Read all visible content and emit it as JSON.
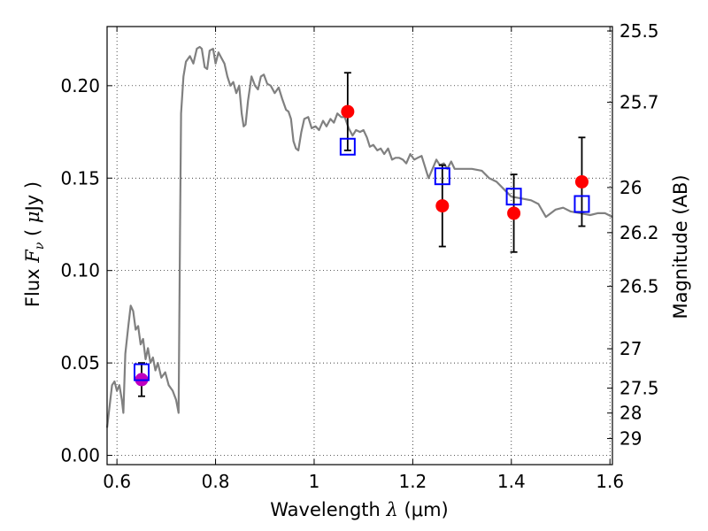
{
  "chart_data": {
    "type": "scatter",
    "xlabel": {
      "prefix": "Wavelength",
      "symbol": "λ",
      "unit": "(μm)"
    },
    "ylabel": {
      "prefix": "Flux",
      "symbol": "F",
      "subscript": "ν",
      "unit_open": "(",
      "unit_symbol": "μ",
      "unit": "Jy )"
    },
    "y2label": "Magnitude (AB)",
    "xlim": [
      0.58,
      1.605
    ],
    "ylim": [
      -0.005,
      0.232
    ],
    "grid": true,
    "x_ticks": [
      0.6,
      0.8,
      1.0,
      1.2,
      1.4,
      1.6
    ],
    "x_tick_labels": [
      "0.6",
      "0.8",
      "1",
      "1.2",
      "1.4",
      "1.6"
    ],
    "y_ticks": [
      0.0,
      0.05,
      0.1,
      0.15,
      0.2
    ],
    "y_tick_labels": [
      "0.00",
      "0.05",
      "0.10",
      "0.15",
      "0.20"
    ],
    "y2_ticks": [
      {
        "label": "25.5",
        "flux": 0.2296
      },
      {
        "label": "25.7",
        "flux": 0.191
      },
      {
        "label": "26",
        "flux": 0.1449
      },
      {
        "label": "26.2",
        "flux": 0.1205
      },
      {
        "label": "26.5",
        "flux": 0.0914
      },
      {
        "label": "27",
        "flux": 0.0577
      },
      {
        "label": "27.5",
        "flux": 0.0364
      },
      {
        "label": "28",
        "flux": 0.0229
      },
      {
        "label": "29",
        "flux": 0.0091
      }
    ],
    "series": [
      {
        "kind": "line",
        "color": "#808080",
        "points": [
          [
            0.58,
            0.015
          ],
          [
            0.59,
            0.038
          ],
          [
            0.595,
            0.04
          ],
          [
            0.6,
            0.035
          ],
          [
            0.605,
            0.038
          ],
          [
            0.61,
            0.03
          ],
          [
            0.613,
            0.023
          ],
          [
            0.617,
            0.055
          ],
          [
            0.623,
            0.07
          ],
          [
            0.628,
            0.081
          ],
          [
            0.633,
            0.078
          ],
          [
            0.638,
            0.068
          ],
          [
            0.643,
            0.07
          ],
          [
            0.648,
            0.06
          ],
          [
            0.653,
            0.063
          ],
          [
            0.658,
            0.052
          ],
          [
            0.663,
            0.058
          ],
          [
            0.668,
            0.05
          ],
          [
            0.673,
            0.053
          ],
          [
            0.678,
            0.046
          ],
          [
            0.683,
            0.05
          ],
          [
            0.69,
            0.042
          ],
          [
            0.698,
            0.045
          ],
          [
            0.705,
            0.038
          ],
          [
            0.713,
            0.035
          ],
          [
            0.72,
            0.03
          ],
          [
            0.725,
            0.023
          ],
          [
            0.728,
            0.12
          ],
          [
            0.73,
            0.185
          ],
          [
            0.735,
            0.205
          ],
          [
            0.74,
            0.213
          ],
          [
            0.748,
            0.216
          ],
          [
            0.755,
            0.212
          ],
          [
            0.762,
            0.22
          ],
          [
            0.768,
            0.221
          ],
          [
            0.772,
            0.22
          ],
          [
            0.778,
            0.21
          ],
          [
            0.783,
            0.209
          ],
          [
            0.788,
            0.219
          ],
          [
            0.795,
            0.22
          ],
          [
            0.8,
            0.212
          ],
          [
            0.806,
            0.218
          ],
          [
            0.812,
            0.215
          ],
          [
            0.818,
            0.212
          ],
          [
            0.824,
            0.205
          ],
          [
            0.83,
            0.2
          ],
          [
            0.836,
            0.202
          ],
          [
            0.842,
            0.196
          ],
          [
            0.848,
            0.2
          ],
          [
            0.853,
            0.185
          ],
          [
            0.857,
            0.178
          ],
          [
            0.861,
            0.179
          ],
          [
            0.866,
            0.192
          ],
          [
            0.873,
            0.205
          ],
          [
            0.88,
            0.2
          ],
          [
            0.886,
            0.198
          ],
          [
            0.892,
            0.205
          ],
          [
            0.898,
            0.206
          ],
          [
            0.905,
            0.201
          ],
          [
            0.912,
            0.2
          ],
          [
            0.92,
            0.196
          ],
          [
            0.928,
            0.199
          ],
          [
            0.935,
            0.193
          ],
          [
            0.943,
            0.187
          ],
          [
            0.948,
            0.186
          ],
          [
            0.953,
            0.182
          ],
          [
            0.958,
            0.17
          ],
          [
            0.963,
            0.166
          ],
          [
            0.968,
            0.165
          ],
          [
            0.974,
            0.175
          ],
          [
            0.98,
            0.182
          ],
          [
            0.988,
            0.183
          ],
          [
            0.995,
            0.177
          ],
          [
            1.003,
            0.178
          ],
          [
            1.01,
            0.176
          ],
          [
            1.018,
            0.181
          ],
          [
            1.025,
            0.178
          ],
          [
            1.033,
            0.182
          ],
          [
            1.04,
            0.18
          ],
          [
            1.047,
            0.185
          ],
          [
            1.055,
            0.183
          ],
          [
            1.062,
            0.183
          ],
          [
            1.07,
            0.177
          ],
          [
            1.078,
            0.173
          ],
          [
            1.085,
            0.176
          ],
          [
            1.093,
            0.175
          ],
          [
            1.1,
            0.176
          ],
          [
            1.107,
            0.172
          ],
          [
            1.113,
            0.167
          ],
          [
            1.12,
            0.168
          ],
          [
            1.128,
            0.165
          ],
          [
            1.135,
            0.166
          ],
          [
            1.142,
            0.163
          ],
          [
            1.15,
            0.166
          ],
          [
            1.158,
            0.16
          ],
          [
            1.165,
            0.161
          ],
          [
            1.172,
            0.161
          ],
          [
            1.18,
            0.16
          ],
          [
            1.187,
            0.158
          ],
          [
            1.195,
            0.163
          ],
          [
            1.203,
            0.16
          ],
          [
            1.21,
            0.161
          ],
          [
            1.218,
            0.162
          ],
          [
            1.225,
            0.156
          ],
          [
            1.232,
            0.15
          ],
          [
            1.24,
            0.155
          ],
          [
            1.248,
            0.16
          ],
          [
            1.255,
            0.157
          ],
          [
            1.263,
            0.158
          ],
          [
            1.27,
            0.155
          ],
          [
            1.278,
            0.159
          ],
          [
            1.285,
            0.155
          ],
          [
            1.293,
            0.155
          ],
          [
            1.3,
            0.155
          ],
          [
            1.32,
            0.155
          ],
          [
            1.34,
            0.154
          ],
          [
            1.355,
            0.15
          ],
          [
            1.37,
            0.148
          ],
          [
            1.385,
            0.144
          ],
          [
            1.4,
            0.14
          ],
          [
            1.42,
            0.139
          ],
          [
            1.44,
            0.138
          ],
          [
            1.455,
            0.136
          ],
          [
            1.47,
            0.129
          ],
          [
            1.49,
            0.133
          ],
          [
            1.505,
            0.134
          ],
          [
            1.52,
            0.132
          ],
          [
            1.54,
            0.131
          ],
          [
            1.56,
            0.13
          ],
          [
            1.575,
            0.131
          ],
          [
            1.59,
            0.131
          ],
          [
            1.605,
            0.129
          ]
        ]
      },
      {
        "kind": "filled-circle",
        "color": "#ff0000",
        "points": [
          {
            "x": 1.068,
            "y": 0.186,
            "err": 0.021
          },
          {
            "x": 1.26,
            "y": 0.135,
            "err": 0.022
          },
          {
            "x": 1.405,
            "y": 0.131,
            "err": 0.021
          },
          {
            "x": 1.543,
            "y": 0.148,
            "err": 0.024
          }
        ]
      },
      {
        "kind": "filled-circle",
        "color": "#bf00bf",
        "points": [
          {
            "x": 0.65,
            "y": 0.041,
            "err": 0.009
          }
        ]
      },
      {
        "kind": "open-square",
        "color": "#0000ff",
        "points": [
          {
            "x": 0.65,
            "y": 0.045
          },
          {
            "x": 1.068,
            "y": 0.167
          },
          {
            "x": 1.26,
            "y": 0.151
          },
          {
            "x": 1.405,
            "y": 0.14
          },
          {
            "x": 1.543,
            "y": 0.136
          }
        ]
      }
    ]
  }
}
